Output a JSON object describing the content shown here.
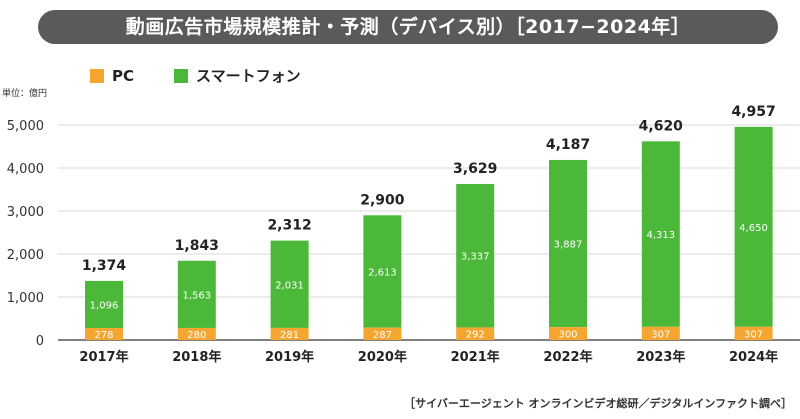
{
  "header": {
    "title": "動画広告市場規模推計・予測（デバイス別）［2017−2024年］"
  },
  "unit_label": "単位：億円",
  "source": "［サイバーエージェント オンラインビデオ総研／デジタルインファクト調べ］",
  "chart_data": {
    "type": "bar",
    "stacked": true,
    "title": "動画広告市場規模推計・予測（デバイス別）［2017−2024年］",
    "categories": [
      "2017年",
      "2018年",
      "2019年",
      "2020年",
      "2021年",
      "2022年",
      "2023年",
      "2024年"
    ],
    "series": [
      {
        "name": "PC",
        "color": "#f5a630",
        "values": [
          278,
          280,
          281,
          287,
          292,
          300,
          307,
          307
        ],
        "labels": [
          "278",
          "280",
          "281",
          "287",
          "292",
          "300",
          "307",
          "307"
        ]
      },
      {
        "name": "スマートフォン",
        "color": "#4cb83a",
        "values": [
          1096,
          1563,
          2031,
          2613,
          3337,
          3887,
          4313,
          4650
        ],
        "labels": [
          "1,096",
          "1,563",
          "2,031",
          "2,613",
          "3,337",
          "3,887",
          "4,313",
          "4,650"
        ]
      }
    ],
    "totals": [
      1374,
      1843,
      2312,
      2900,
      3629,
      4187,
      4620,
      4957
    ],
    "total_labels": [
      "1,374",
      "1,843",
      "2,312",
      "2,900",
      "3,629",
      "4,187",
      "4,620",
      "4,957"
    ],
    "yticks": [
      0,
      1000,
      2000,
      3000,
      4000,
      5000
    ],
    "ytick_labels": [
      "0",
      "1,000",
      "2,000",
      "3,000",
      "4,000",
      "5,000"
    ],
    "ylim": [
      0,
      5000
    ],
    "xlabel": "",
    "ylabel": "単位：億円",
    "legend_position": "top-left"
  }
}
